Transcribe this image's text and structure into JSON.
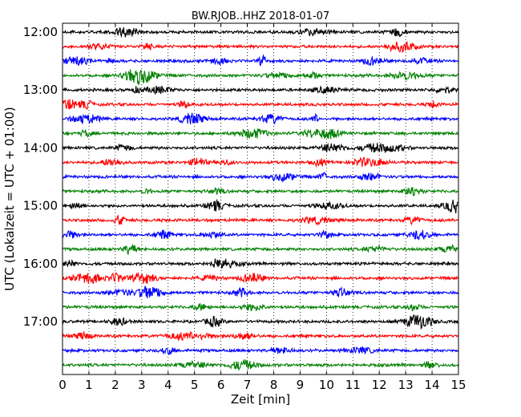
{
  "chart_data": {
    "type": "line",
    "title": "BW.RJOB..HHZ 2018-01-07",
    "xlabel": "Zeit  [min]",
    "ylabel": "UTC (Lokalzeit = UTC + 01:00)",
    "xlim": [
      0,
      15
    ],
    "x_ticks": [
      "0",
      "1",
      "2",
      "3",
      "4",
      "5",
      "6",
      "7",
      "8",
      "9",
      "10",
      "11",
      "12",
      "13",
      "14",
      "15"
    ],
    "y_tick_labels": [
      "12:00",
      "13:00",
      "14:00",
      "15:00",
      "16:00",
      "17:00"
    ],
    "grid": "vertical dotted",
    "row_interval_min": 15,
    "start_time": "12:00",
    "row_colors": [
      "#000000",
      "#ff0000",
      "#0000ff",
      "#008000"
    ],
    "rows": [
      "12:00",
      "12:15",
      "12:30",
      "12:45",
      "13:00",
      "13:15",
      "13:30",
      "13:45",
      "14:00",
      "14:15",
      "14:30",
      "14:45",
      "15:00",
      "15:15",
      "15:30",
      "15:45",
      "16:00",
      "16:15",
      "16:30",
      "16:45",
      "17:00",
      "17:15",
      "17:30",
      "17:45"
    ]
  }
}
